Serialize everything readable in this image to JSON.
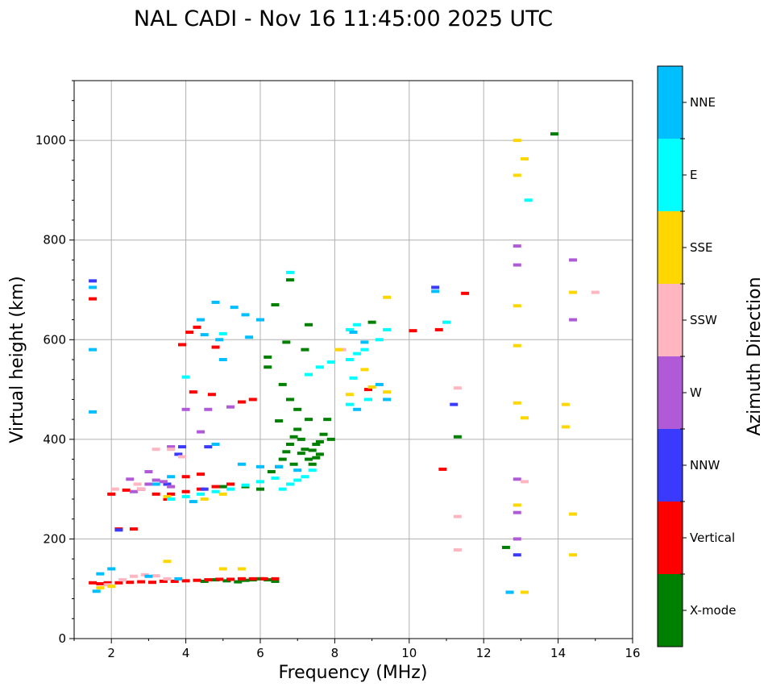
{
  "chart_data": {
    "type": "scatter",
    "title": "NAL CADI - Nov 16 11:45:00 2025 UTC",
    "xlabel": "Frequency (MHz)",
    "ylabel": "Virtual height (km)",
    "xlim": [
      1,
      16
    ],
    "ylim": [
      0,
      1120
    ],
    "xticks": [
      2,
      4,
      6,
      8,
      10,
      12,
      14,
      16
    ],
    "yticks": [
      0,
      200,
      400,
      600,
      800,
      1000
    ],
    "grid": true,
    "colorbar": {
      "label": "Azimuth Direction",
      "categories": [
        {
          "name": "X-mode",
          "color": "#008000"
        },
        {
          "name": "Vertical",
          "color": "#ff0000"
        },
        {
          "name": "NNW",
          "color": "#3a3aff"
        },
        {
          "name": "W",
          "color": "#b05ad8"
        },
        {
          "name": "SSW",
          "color": "#ffb6c1"
        },
        {
          "name": "SSE",
          "color": "#ffd700"
        },
        {
          "name": "E",
          "color": "#00ffff"
        },
        {
          "name": "NNE",
          "color": "#00bfff"
        }
      ]
    },
    "series": [
      {
        "name": "X-mode",
        "points": [
          [
            5.8,
            118
          ],
          [
            6.0,
            120
          ],
          [
            6.2,
            118
          ],
          [
            6.4,
            115
          ],
          [
            4.5,
            115
          ],
          [
            4.8,
            118
          ],
          [
            5.1,
            116
          ],
          [
            5.4,
            114
          ],
          [
            5.6,
            117
          ],
          [
            6.3,
            335
          ],
          [
            6.5,
            345
          ],
          [
            6.6,
            360
          ],
          [
            6.7,
            375
          ],
          [
            6.8,
            390
          ],
          [
            6.9,
            405
          ],
          [
            7.0,
            420
          ],
          [
            7.1,
            400
          ],
          [
            7.2,
            380
          ],
          [
            7.3,
            360
          ],
          [
            7.4,
            350
          ],
          [
            7.5,
            390
          ],
          [
            7.6,
            370
          ],
          [
            7.7,
            410
          ],
          [
            7.8,
            440
          ],
          [
            7.9,
            400
          ],
          [
            7.3,
            440
          ],
          [
            7.0,
            460
          ],
          [
            6.8,
            480
          ],
          [
            6.6,
            510
          ],
          [
            6.2,
            545
          ],
          [
            6.2,
            565
          ],
          [
            6.4,
            670
          ],
          [
            6.8,
            720
          ],
          [
            7.3,
            630
          ],
          [
            9.0,
            635
          ],
          [
            7.4,
            378
          ],
          [
            7.5,
            363
          ],
          [
            7.6,
            395
          ],
          [
            6.9,
            350
          ],
          [
            7.1,
            372
          ],
          [
            6.5,
            437
          ],
          [
            13.9,
            1013
          ],
          [
            11.3,
            405
          ],
          [
            12.6,
            183
          ],
          [
            7.2,
            580
          ],
          [
            6.7,
            595
          ],
          [
            6.0,
            300
          ],
          [
            5.6,
            305
          ],
          [
            5.0,
            305
          ]
        ]
      },
      {
        "name": "Vertical",
        "points": [
          [
            1.5,
            112
          ],
          [
            1.7,
            110
          ],
          [
            1.9,
            112
          ],
          [
            2.2,
            112
          ],
          [
            2.5,
            113
          ],
          [
            2.8,
            114
          ],
          [
            3.1,
            113
          ],
          [
            3.4,
            115
          ],
          [
            3.7,
            115
          ],
          [
            4.0,
            116
          ],
          [
            4.3,
            117
          ],
          [
            4.6,
            118
          ],
          [
            4.9,
            119
          ],
          [
            5.2,
            119
          ],
          [
            5.5,
            120
          ],
          [
            5.8,
            120
          ],
          [
            6.1,
            120
          ],
          [
            6.4,
            120
          ],
          [
            2.0,
            290
          ],
          [
            2.4,
            298
          ],
          [
            2.8,
            300
          ],
          [
            3.2,
            290
          ],
          [
            3.6,
            290
          ],
          [
            4.0,
            295
          ],
          [
            4.4,
            300
          ],
          [
            4.8,
            305
          ],
          [
            5.2,
            310
          ],
          [
            4.0,
            325
          ],
          [
            4.4,
            330
          ],
          [
            3.9,
            590
          ],
          [
            4.1,
            615
          ],
          [
            4.3,
            625
          ],
          [
            4.8,
            585
          ],
          [
            5.5,
            475
          ],
          [
            5.8,
            480
          ],
          [
            2.2,
            220
          ],
          [
            2.6,
            220
          ],
          [
            10.1,
            618
          ],
          [
            10.8,
            620
          ],
          [
            10.9,
            340
          ],
          [
            11.5,
            693
          ],
          [
            8.9,
            500
          ],
          [
            1.5,
            682
          ],
          [
            3.5,
            280
          ],
          [
            4.7,
            490
          ],
          [
            4.2,
            495
          ]
        ]
      },
      {
        "name": "NNW",
        "points": [
          [
            1.5,
            718
          ],
          [
            10.7,
            705
          ],
          [
            11.2,
            470
          ],
          [
            12.9,
            168
          ],
          [
            12.7,
            93
          ],
          [
            3.5,
            310
          ],
          [
            4.5,
            300
          ],
          [
            4.6,
            385
          ],
          [
            3.9,
            385
          ],
          [
            3.8,
            370
          ],
          [
            2.2,
            218
          ]
        ]
      },
      {
        "name": "W",
        "points": [
          [
            2.8,
            300
          ],
          [
            3.0,
            310
          ],
          [
            3.2,
            318
          ],
          [
            3.4,
            315
          ],
          [
            3.6,
            305
          ],
          [
            2.6,
            295
          ],
          [
            3.0,
            335
          ],
          [
            3.6,
            385
          ],
          [
            4.0,
            460
          ],
          [
            4.6,
            460
          ],
          [
            5.2,
            465
          ],
          [
            4.4,
            415
          ],
          [
            12.9,
            320
          ],
          [
            12.9,
            253
          ],
          [
            12.9,
            200
          ],
          [
            12.9,
            750
          ],
          [
            14.4,
            760
          ],
          [
            14.4,
            640
          ],
          [
            12.9,
            788
          ],
          [
            2.5,
            320
          ]
        ]
      },
      {
        "name": "SSW",
        "points": [
          [
            1.9,
            108
          ],
          [
            2.3,
            118
          ],
          [
            2.6,
            125
          ],
          [
            2.9,
            128
          ],
          [
            3.2,
            126
          ],
          [
            3.5,
            120
          ],
          [
            2.8,
            300
          ],
          [
            3.2,
            380
          ],
          [
            3.6,
            380
          ],
          [
            3.9,
            365
          ],
          [
            11.3,
            503
          ],
          [
            11.3,
            178
          ],
          [
            11.3,
            245
          ],
          [
            15.0,
            695
          ],
          [
            8.2,
            580
          ],
          [
            13.1,
            315
          ],
          [
            2.7,
            310
          ],
          [
            2.1,
            300
          ]
        ]
      },
      {
        "name": "SSE",
        "points": [
          [
            1.7,
            102
          ],
          [
            2.0,
            105
          ],
          [
            3.5,
            155
          ],
          [
            5.0,
            140
          ],
          [
            5.5,
            140
          ],
          [
            4.5,
            280
          ],
          [
            5.0,
            290
          ],
          [
            8.4,
            490
          ],
          [
            9.0,
            505
          ],
          [
            9.4,
            495
          ],
          [
            8.8,
            540
          ],
          [
            12.9,
            1000
          ],
          [
            13.1,
            963
          ],
          [
            12.9,
            930
          ],
          [
            12.9,
            668
          ],
          [
            12.9,
            588
          ],
          [
            12.9,
            473
          ],
          [
            12.9,
            268
          ],
          [
            13.1,
            443
          ],
          [
            14.2,
            470
          ],
          [
            14.2,
            425
          ],
          [
            14.4,
            695
          ],
          [
            14.4,
            250
          ],
          [
            14.4,
            168
          ],
          [
            13.1,
            93
          ],
          [
            8.1,
            580
          ],
          [
            9.4,
            685
          ],
          [
            3.5,
            285
          ]
        ]
      },
      {
        "name": "E",
        "points": [
          [
            3.6,
            280
          ],
          [
            4.0,
            285
          ],
          [
            4.4,
            290
          ],
          [
            4.8,
            295
          ],
          [
            5.2,
            300
          ],
          [
            5.6,
            308
          ],
          [
            6.0,
            315
          ],
          [
            6.4,
            322
          ],
          [
            6.8,
            310
          ],
          [
            7.0,
            318
          ],
          [
            7.2,
            325
          ],
          [
            7.4,
            338
          ],
          [
            6.6,
            300
          ],
          [
            8.4,
            560
          ],
          [
            8.8,
            580
          ],
          [
            9.2,
            600
          ],
          [
            9.4,
            620
          ],
          [
            8.4,
            620
          ],
          [
            8.9,
            480
          ],
          [
            8.4,
            470
          ],
          [
            8.6,
            630
          ],
          [
            8.5,
            523
          ],
          [
            8.6,
            572
          ],
          [
            13.2,
            880
          ],
          [
            6.8,
            735
          ],
          [
            7.9,
            555
          ],
          [
            7.6,
            545
          ],
          [
            7.3,
            530
          ],
          [
            5.0,
            612
          ],
          [
            4.0,
            525
          ],
          [
            11.0,
            635
          ]
        ]
      },
      {
        "name": "NNE",
        "points": [
          [
            1.5,
            580
          ],
          [
            1.5,
            455
          ],
          [
            1.5,
            705
          ],
          [
            1.6,
            95
          ],
          [
            1.7,
            130
          ],
          [
            2.0,
            140
          ],
          [
            3.0,
            125
          ],
          [
            3.8,
            120
          ],
          [
            3.2,
            310
          ],
          [
            3.6,
            325
          ],
          [
            4.2,
            275
          ],
          [
            4.8,
            675
          ],
          [
            5.3,
            665
          ],
          [
            5.6,
            650
          ],
          [
            6.0,
            640
          ],
          [
            4.4,
            640
          ],
          [
            4.5,
            610
          ],
          [
            4.9,
            600
          ],
          [
            5.7,
            605
          ],
          [
            5.0,
            560
          ],
          [
            4.8,
            390
          ],
          [
            5.5,
            350
          ],
          [
            6.0,
            345
          ],
          [
            6.5,
            345
          ],
          [
            7.0,
            338
          ],
          [
            8.6,
            460
          ],
          [
            9.2,
            510
          ],
          [
            9.4,
            480
          ],
          [
            8.5,
            615
          ],
          [
            8.8,
            595
          ],
          [
            10.7,
            697
          ],
          [
            12.7,
            93
          ]
        ]
      }
    ]
  }
}
